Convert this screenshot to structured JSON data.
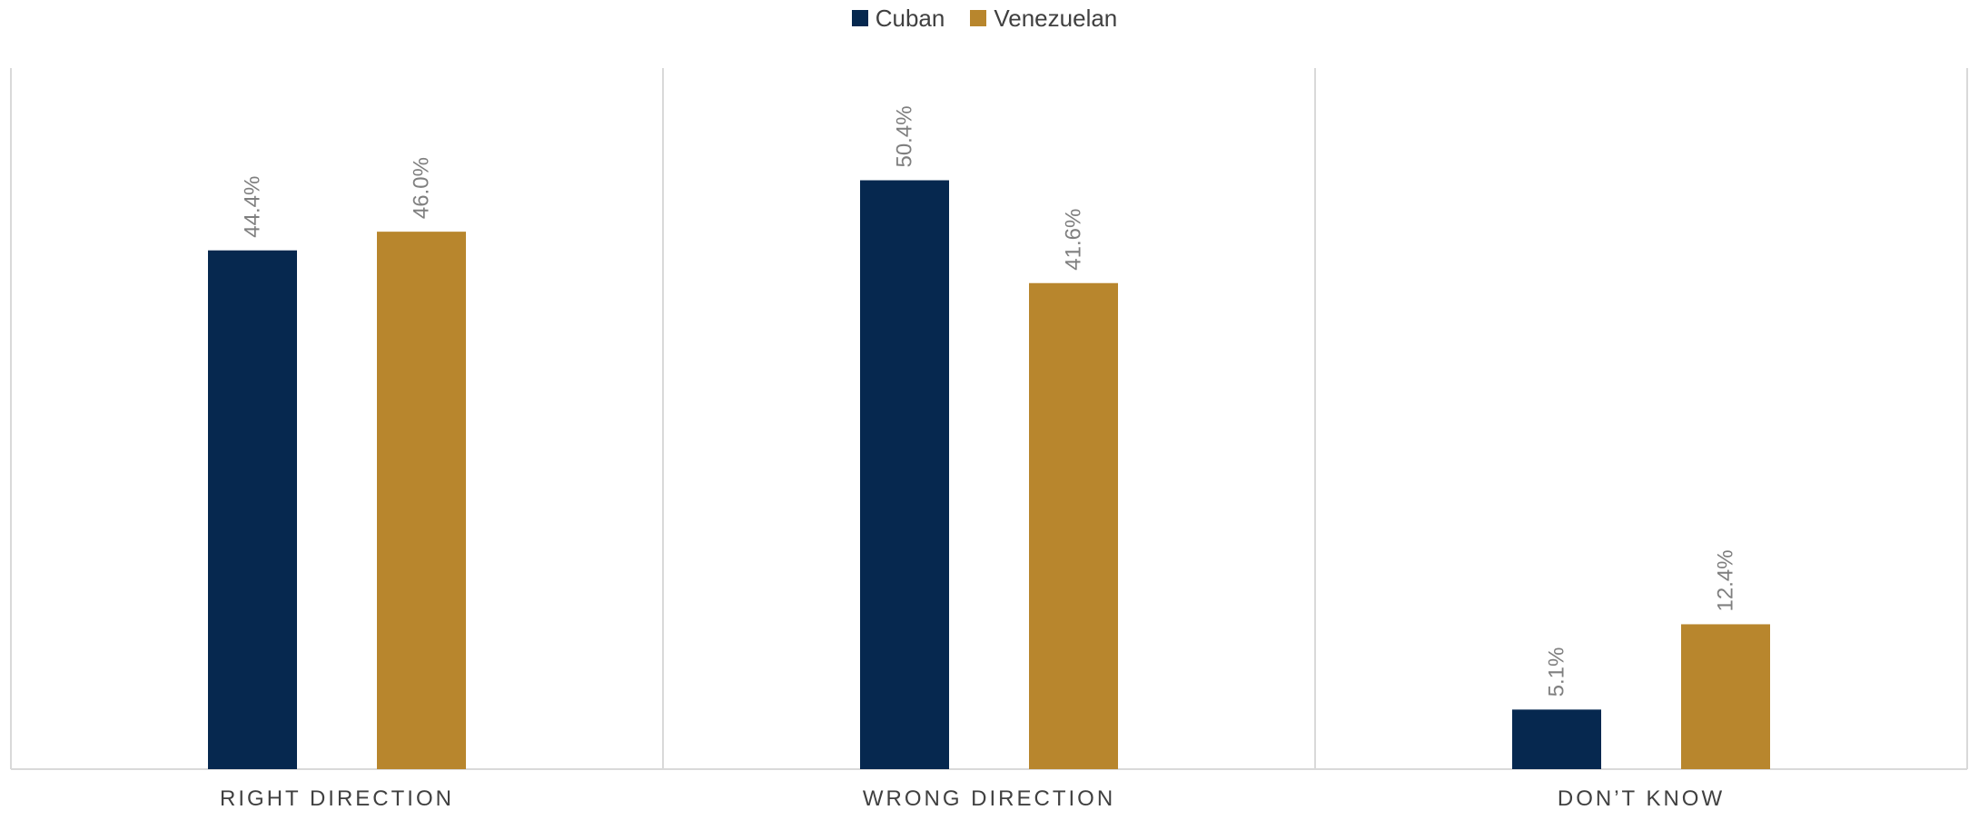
{
  "chart_data": {
    "type": "bar",
    "categories": [
      "RIGHT DIRECTION",
      "WRONG DIRECTION",
      "DON’T KNOW"
    ],
    "series": [
      {
        "name": "Cuban",
        "color": "#06284F",
        "values": [
          44.4,
          50.4,
          5.1
        ],
        "labels": [
          "44.4%",
          "50.4%",
          "5.1%"
        ]
      },
      {
        "name": "Venezuelan",
        "color": "#B8862D",
        "values": [
          46.0,
          41.6,
          12.4
        ],
        "labels": [
          "46.0%",
          "41.6%",
          "12.4%"
        ]
      }
    ],
    "title": "",
    "xlabel": "",
    "ylabel": "",
    "ylim": [
      0,
      60
    ],
    "legend_position": "top-center",
    "grid": false
  }
}
